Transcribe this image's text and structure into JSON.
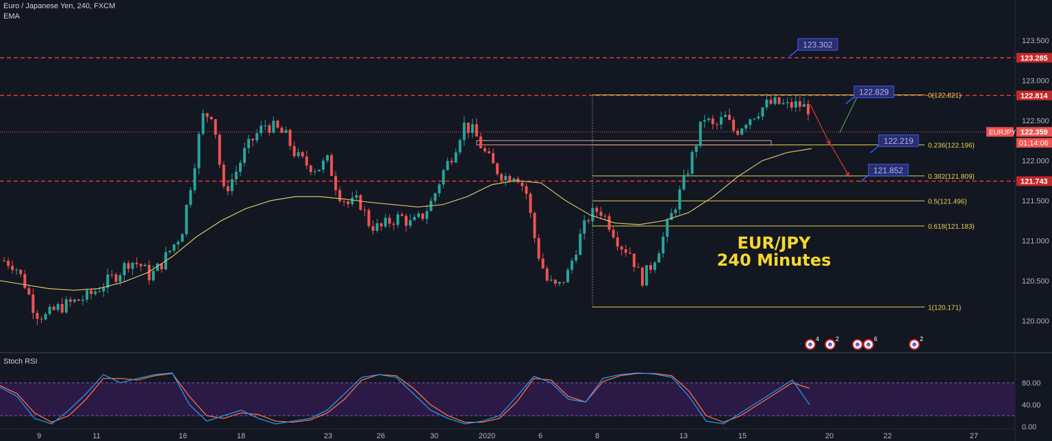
{
  "header": {
    "symbol_line": "Euro / Japanese Yen, 240, FXCM",
    "indicator": "EMA",
    "watermark_pair": "EUR/JPY",
    "watermark_tf": "240 Minutes"
  },
  "rsi_panel": {
    "title": "Stoch RSI",
    "axis": [
      "80.00",
      "40.00",
      "0.00"
    ]
  },
  "colors": {
    "background": "#131722",
    "bull": "#26a69a",
    "bear": "#ef5350",
    "ema": "#d8c46a",
    "level_red": "#e53935",
    "fib": "#e8d24a",
    "callout_fill": "#2a2e6a",
    "callout_border": "#3d5afe",
    "rsi_band": "#2b1a45",
    "k_line": "#2196f3",
    "d_line": "#ff7043"
  },
  "chart_data": {
    "type": "candlestick",
    "y_axis_labels": [
      "123.500",
      "123.000",
      "122.500",
      "122.000",
      "121.500",
      "121.000",
      "120.500",
      "120.000"
    ],
    "ylim": [
      119.6,
      123.75
    ],
    "x_tick_labels": [
      "9",
      "11",
      "16",
      "18",
      "23",
      "26",
      "30",
      "2020",
      "6",
      "8",
      "13",
      "15",
      "20",
      "22",
      "27"
    ],
    "price_tags": {
      "symbol": "EURJPY",
      "last_price": "122.359",
      "countdown": "01:14:06",
      "levels": [
        "123.285",
        "122.814",
        "121.743"
      ]
    },
    "horizontal_levels": [
      123.285,
      122.814,
      121.743
    ],
    "fib_levels": [
      {
        "label": "0(122.821)",
        "value": 122.821
      },
      {
        "label": "0.236(122.196)",
        "value": 122.196
      },
      {
        "label": "0.382(121.809)",
        "value": 121.809
      },
      {
        "label": "0.5(121.496)",
        "value": 121.496
      },
      {
        "label": "0.618(121.183)",
        "value": 121.183
      },
      {
        "label": "1(120.171)",
        "value": 120.171
      }
    ],
    "callouts": [
      {
        "label": "123.302",
        "value": 123.302
      },
      {
        "label": "122.829",
        "value": 122.829
      },
      {
        "label": "122.219",
        "value": 122.219
      },
      {
        "label": "121.852",
        "value": 121.852
      }
    ],
    "event_markers": [
      "4",
      "2",
      "",
      "6",
      "2"
    ],
    "price_path": [
      120.75,
      120.7,
      120.45,
      120.1,
      120.05,
      120.15,
      120.2,
      120.25,
      120.3,
      120.4,
      120.5,
      120.6,
      120.75,
      120.7,
      120.55,
      120.7,
      120.9,
      121.1,
      121.8,
      122.55,
      122.6,
      121.6,
      121.8,
      122.1,
      122.3,
      122.45,
      122.4,
      122.3,
      122.05,
      121.95,
      121.9,
      122.0,
      121.6,
      121.45,
      121.5,
      121.2,
      121.15,
      121.25,
      121.3,
      121.2,
      121.3,
      121.5,
      121.85,
      122.1,
      122.45,
      122.35,
      122.1,
      121.9,
      121.8,
      121.85,
      121.6,
      120.9,
      120.5,
      120.4,
      120.6,
      121.0,
      121.3,
      121.4,
      121.2,
      120.95,
      120.85,
      120.5,
      120.7,
      121.0,
      121.35,
      121.7,
      122.1,
      122.55,
      122.4,
      122.55,
      122.35,
      122.5,
      122.6,
      122.7,
      122.72,
      122.68,
      122.7,
      122.65
    ],
    "ema_path": [
      120.5,
      120.45,
      120.4,
      120.38,
      120.4,
      120.48,
      120.6,
      120.8,
      121.05,
      121.25,
      121.4,
      121.5,
      121.55,
      121.55,
      121.52,
      121.48,
      121.45,
      121.42,
      121.45,
      121.55,
      121.7,
      121.75,
      121.72,
      121.5,
      121.32,
      121.22,
      121.2,
      121.25,
      121.35,
      121.55,
      121.8,
      122.0,
      122.1,
      122.15
    ],
    "stoch_rsi": {
      "levels": [
        80,
        20
      ],
      "k": [
        72,
        55,
        15,
        5,
        30,
        60,
        95,
        80,
        88,
        95,
        98,
        40,
        10,
        20,
        30,
        15,
        5,
        10,
        15,
        30,
        60,
        90,
        95,
        90,
        60,
        30,
        15,
        5,
        10,
        20,
        55,
        92,
        80,
        50,
        45,
        88,
        95,
        98,
        96,
        90,
        55,
        10,
        5,
        25,
        45,
        65,
        85,
        40
      ],
      "d": [
        75,
        60,
        25,
        8,
        20,
        50,
        88,
        88,
        85,
        93,
        97,
        55,
        20,
        15,
        25,
        22,
        10,
        8,
        12,
        25,
        50,
        85,
        95,
        93,
        70,
        40,
        20,
        8,
        8,
        15,
        45,
        88,
        85,
        55,
        45,
        82,
        93,
        97,
        97,
        93,
        65,
        20,
        8,
        20,
        40,
        60,
        80,
        70
      ]
    }
  }
}
